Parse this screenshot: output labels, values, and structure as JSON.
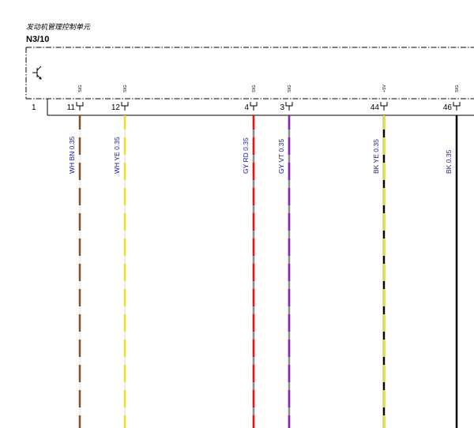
{
  "component": {
    "title": "发动机管理控制单元",
    "code": "N3/10",
    "side_pin": "1"
  },
  "colors": {
    "WH": "#ffffff",
    "BN": "#8b4a25",
    "YE": "#e8e020",
    "GY": "#8c8c8c",
    "RD": "#ee1111",
    "VT": "#8a22b0",
    "BK": "#000000",
    "label": "#1a1aa0"
  },
  "pins": [
    {
      "pin": "11",
      "signal": "SIG",
      "wire": "WH BN 0.35",
      "base": "WH",
      "stripe": "BN"
    },
    {
      "pin": "12",
      "signal": "SIG",
      "wire": "WH YE 0.35",
      "base": "WH",
      "stripe": "YE"
    },
    {
      "pin": "4",
      "signal": "SIG",
      "wire": "GY RD 0.35",
      "base": "GY",
      "stripe": "RD"
    },
    {
      "pin": "3",
      "signal": "SIG",
      "wire": "GY VT 0.35",
      "base": "GY",
      "stripe": "VT"
    },
    {
      "pin": "44",
      "signal": "+5V",
      "wire": "BK YE 0.35",
      "base": "BK",
      "stripe": "YE"
    },
    {
      "pin": "46",
      "signal": "SIG",
      "wire": "BK  0.35",
      "base": "BK",
      "stripe": null
    }
  ]
}
